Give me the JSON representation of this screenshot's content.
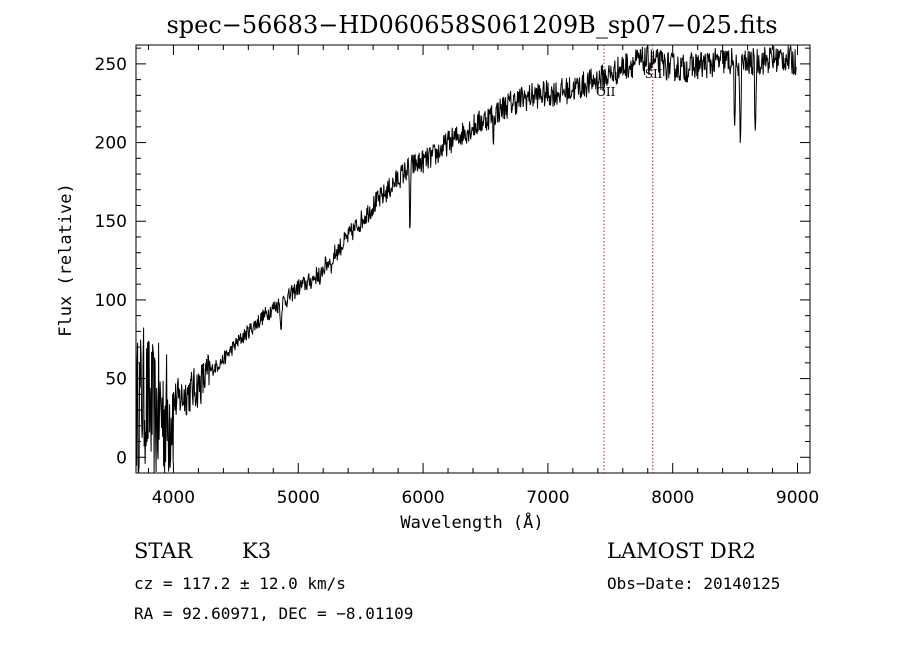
{
  "chart_data": {
    "type": "line",
    "title": "spec−56683−HD060658S061209B_sp07−025.fits",
    "xlabel": "Wavelength (Å)",
    "ylabel": "Flux (relative)",
    "xlim": [
      3700,
      9100
    ],
    "ylim": [
      -10,
      262
    ],
    "x_ticks": [
      4000,
      5000,
      6000,
      7000,
      8000,
      9000
    ],
    "x_tick_labels": [
      "4000",
      "5000",
      "6000",
      "7000",
      "8000",
      "9000"
    ],
    "y_ticks": [
      0,
      50,
      100,
      150,
      200,
      250
    ],
    "y_tick_labels": [
      "0",
      "50",
      "100",
      "150",
      "200",
      "250"
    ],
    "grid": false,
    "series": [
      {
        "x": [
          3700,
          3750,
          3800,
          3850,
          3900,
          3950,
          4000,
          4100,
          4200,
          4300,
          4400,
          4500,
          4600,
          4700,
          4800,
          4900,
          5000,
          5100,
          5200,
          5300,
          5400,
          5500,
          5600,
          5700,
          5800,
          5900,
          6000,
          6100,
          6200,
          6300,
          6400,
          6500,
          6600,
          6700,
          6800,
          6900,
          7000,
          7100,
          7200,
          7300,
          7400,
          7500,
          7600,
          7700,
          7800,
          7900,
          8000,
          8100,
          8200,
          8300,
          8400,
          8500,
          8600,
          8700,
          8800,
          8900,
          9000
        ],
        "y": [
          30,
          40,
          35,
          25,
          30,
          25,
          35,
          40,
          45,
          55,
          62,
          72,
          80,
          88,
          95,
          100,
          108,
          112,
          120,
          130,
          140,
          150,
          160,
          168,
          177,
          185,
          188,
          192,
          200,
          205,
          210,
          215,
          220,
          225,
          228,
          230,
          231,
          232,
          234,
          237,
          240,
          243,
          248,
          251,
          252,
          250,
          248,
          247,
          249,
          250,
          252,
          251,
          250,
          252,
          253,
          254,
          250
        ]
      }
    ],
    "absorption_lines": [
      {
        "x": 4861,
        "depth": 18
      },
      {
        "x": 5175,
        "depth": 12
      },
      {
        "x": 5270,
        "depth": 8
      },
      {
        "x": 5895,
        "depth": 40
      },
      {
        "x": 6563,
        "depth": 15
      },
      {
        "x": 8498,
        "depth": 50
      },
      {
        "x": 8542,
        "depth": 60
      },
      {
        "x": 8662,
        "depth": 48
      }
    ],
    "reference_lines": [
      {
        "x": 7450,
        "label": "OII"
      },
      {
        "x": 7840,
        "label": "SII"
      }
    ]
  },
  "info": {
    "object_type": "STAR",
    "subclass": "K3",
    "survey": "LAMOST DR2",
    "redshift": "cz = 117.2 ± 12.0 km/s",
    "obs_date": "Obs−Date: 20140125",
    "coordinates": "RA =  92.60971, DEC =  −8.01109"
  }
}
